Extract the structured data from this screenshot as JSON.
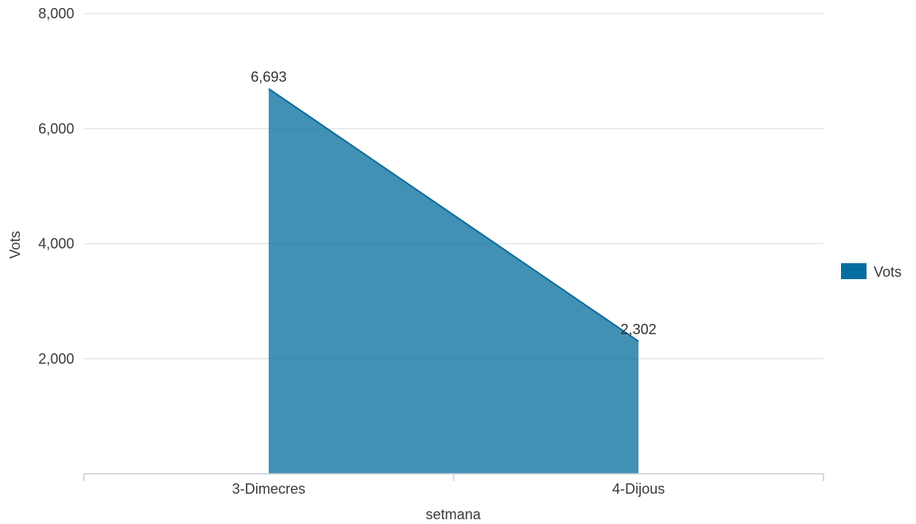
{
  "chart_data": {
    "type": "area",
    "categories": [
      "3-Dimecres",
      "4-Dijous"
    ],
    "series": [
      {
        "name": "Vots",
        "values": [
          6693,
          2302
        ],
        "color": "#066e9e"
      }
    ],
    "data_labels": [
      "6,693",
      "2,302"
    ],
    "xlabel": "setmana",
    "ylabel": "Vots",
    "ylim": [
      0,
      8000
    ],
    "yticks": [
      {
        "value": 2000,
        "label": "2,000"
      },
      {
        "value": 4000,
        "label": "4,000"
      },
      {
        "value": 6000,
        "label": "6,000"
      },
      {
        "value": 8000,
        "label": "8,000"
      }
    ],
    "grid": true,
    "legend": {
      "position": "right",
      "entries": [
        "Vots"
      ]
    }
  }
}
